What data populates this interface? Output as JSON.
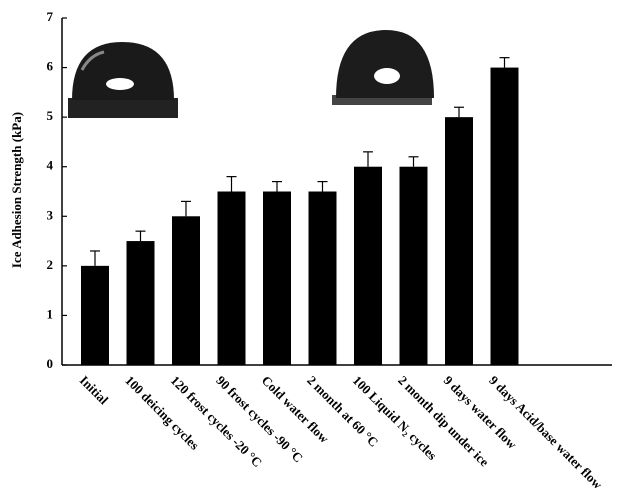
{
  "chart_data": {
    "type": "bar",
    "y_label": "Ice Adhesion Strength (kPa)",
    "categories": [
      "Initial",
      "100 deicing cycles",
      "120 frost cycles -20 °C",
      "90 frost cycles -90 °C",
      "Cold water flow",
      "2 month at 60 °C",
      "100 Liquid N₂ cycles",
      "2 month dip under ice",
      "9 days water flow",
      "9 days Acid/base water flow"
    ],
    "values": [
      2,
      2.5,
      3,
      3.5,
      3.5,
      3.5,
      4,
      4,
      5,
      6
    ],
    "errors": [
      0.3,
      0.2,
      0.3,
      0.3,
      0.2,
      0.2,
      0.3,
      0.2,
      0.2,
      0.2
    ],
    "color": "#000000",
    "ylim": [
      0,
      7
    ],
    "yticks": [
      0,
      1,
      2,
      3,
      4,
      5,
      6,
      7
    ]
  }
}
